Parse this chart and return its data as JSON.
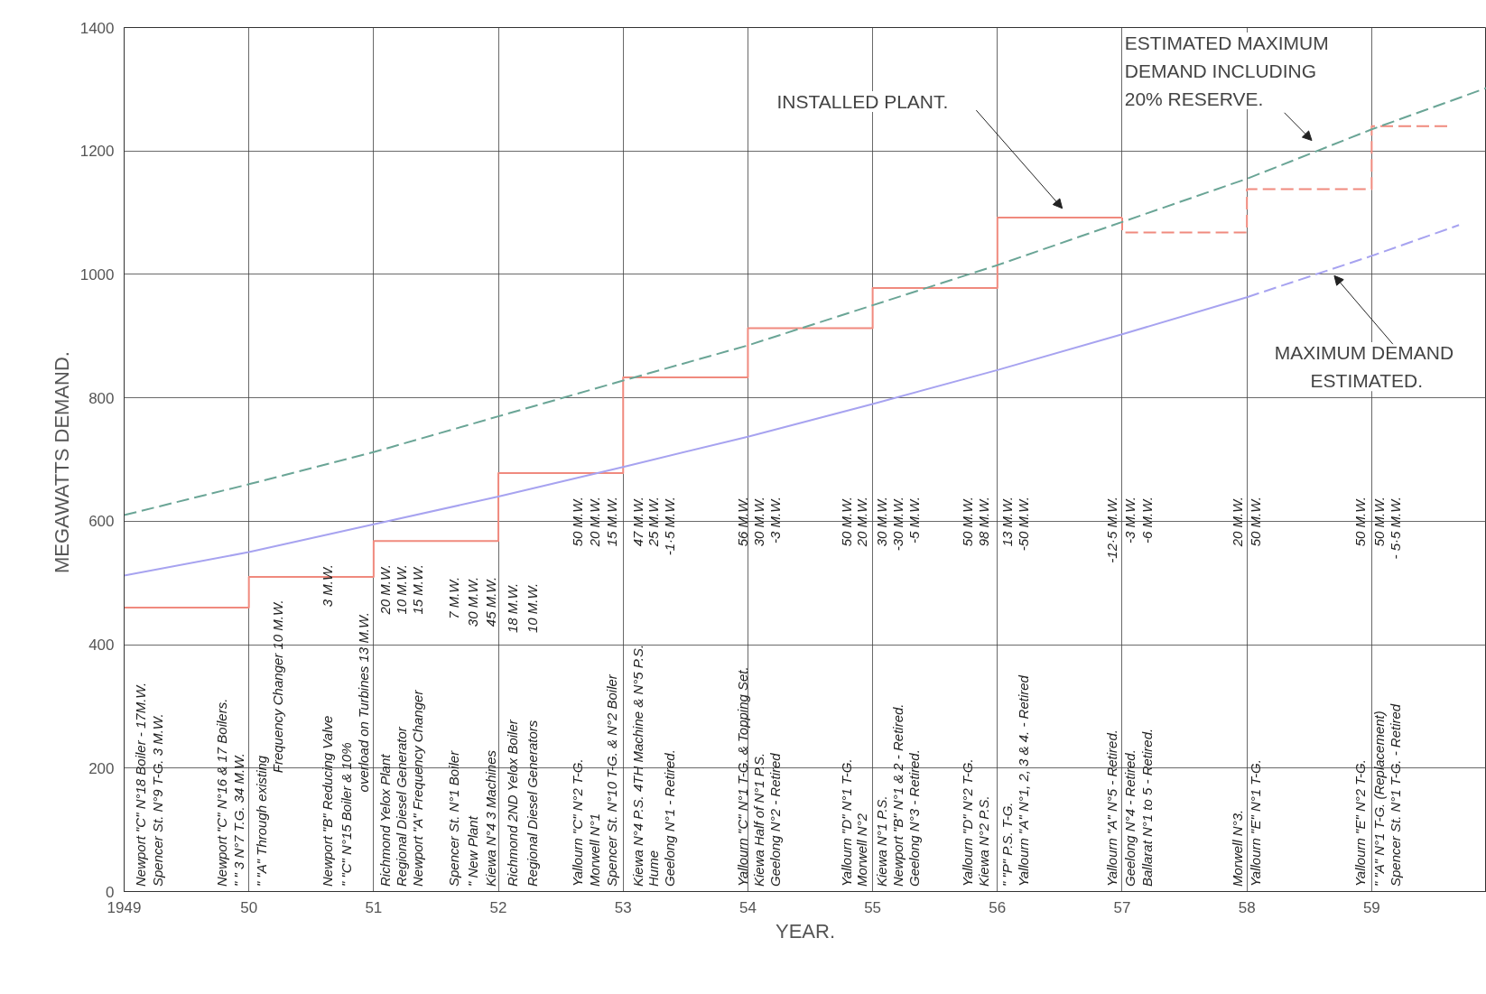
{
  "chart_data": {
    "type": "line",
    "xlabel": "YEAR.",
    "ylabel": "MEGAWATTS  DEMAND.",
    "xlim": [
      1949,
      1959.92
    ],
    "ylim": [
      0,
      1400
    ],
    "xticks": [
      1949,
      {
        "value": 1950,
        "label": "50"
      },
      {
        "value": 1951,
        "label": "51"
      },
      {
        "value": 1952,
        "label": "52"
      },
      {
        "value": 1953,
        "label": "53"
      },
      {
        "value": 1954,
        "label": "54"
      },
      {
        "value": 1955,
        "label": "55"
      },
      {
        "value": 1956,
        "label": "56"
      },
      {
        "value": 1957,
        "label": "57"
      },
      {
        "value": 1958,
        "label": "58"
      },
      {
        "value": 1959,
        "label": "59"
      }
    ],
    "yticks": [
      0,
      200,
      400,
      600,
      800,
      1000,
      1200,
      1400
    ],
    "grid": true,
    "series": [
      {
        "type": "step",
        "color": "#f08a7e",
        "line_style": "solid",
        "x": [
          1949,
          1950,
          1951,
          1952,
          1953,
          1954,
          1955,
          1956,
          1957
        ],
        "values": [
          460,
          510,
          568,
          678,
          833,
          913,
          978,
          1092,
          1092
        ]
      },
      {
        "type": "step",
        "color": "#f08a7e",
        "line_style": "dashed",
        "x": [
          1957,
          1957,
          1958,
          1959,
          1959.62
        ],
        "values": [
          1092,
          1068,
          1138,
          1240,
          1240
        ]
      },
      {
        "color": "#6aa596",
        "line_style": "dashed",
        "x": [
          1949,
          1950,
          1951,
          1952,
          1953,
          1954,
          1955,
          1956,
          1957,
          1958,
          1959,
          1959.92
        ],
        "values": [
          610,
          660,
          712,
          770,
          828,
          885,
          950,
          1015,
          1085,
          1155,
          1235,
          1302
        ]
      },
      {
        "color": "#a7a3f0",
        "line_style": "solid",
        "x": [
          1949,
          1950,
          1951,
          1952,
          1953,
          1954,
          1955,
          1956,
          1957,
          1958
        ],
        "values": [
          512,
          550,
          595,
          640,
          688,
          737,
          790,
          845,
          903,
          963
        ]
      },
      {
        "color": "#a7a3f0",
        "line_style": "dashed",
        "x": [
          1958,
          1959,
          1959.7
        ],
        "values": [
          963,
          1030,
          1080
        ]
      }
    ],
    "annotations": [
      "INSTALLED  PLANT.",
      "ESTIMATED  MAXIMUM\nDEMAND  INCLUDING\n20%  RESERVE.",
      "MAXIMUM  DEMAND\nESTIMATED.",
      "Newport \"C\" N°18 Boiler - 17M.W.",
      "Spencer St. N°9 T-G.  3 M.W.",
      "Newport \"C\" N°16 & 17 Boilers.",
      "\"    \"  3 N°7 T.G. 34 M.W.",
      "\"  \"A\" Through existing",
      "Frequency Changer 10 M.W.",
      "Newport \"B\" Reducing Valve",
      "3 M.W.",
      "\"  \"C\" N°15 Boiler & 10%",
      "overload on Turbines 13 M.W.",
      "Richmond Yelox Plant",
      "20 M.W.",
      "Regional Diesel Generator",
      "10 M.W.",
      "Newport \"A\" Frequency Changer",
      "15 M.W.",
      "Spencer St. N°1 Boiler",
      "7 M.W.",
      "\"      New Plant",
      "30 M.W.",
      "Kiewa N°4  3 Machines",
      "45 M.W.",
      "Richmond 2ND Yelox Boiler",
      "18 M.W.",
      "Regional Diesel Generators",
      "10 M.W.",
      "Yallourn \"C\" N°2 T-G.",
      "50 M.W.",
      "Morwell N°1",
      "20 M.W.",
      "Spencer St. N°10 T-G. & N°2 Boiler",
      "15 M.W.",
      "Kiewa N°4 P.S. 4TH Machine & N°5 P.S.",
      "47 M.W.",
      "Hume",
      "25 M.W.",
      "Geelong N°1 - Retired.",
      "-1·5 M.W.",
      "Yallourn \"C\" N°1 T-G. & Topping Set.",
      "56 M.W.",
      "Kiewa Half of N°1 P.S.",
      "30 M.W.",
      "Geelong N°2 - Retired",
      "-3 M.W.",
      "Yallourn \"D\" N°1 T-G.",
      "50 M.W.",
      "Morwell N°2",
      "20 M.W.",
      "Kiewa N°1 P.S.",
      "30 M.W.",
      "Newport \"B\" N°1 & 2 - Retired.",
      "-30 M.W.",
      "Geelong N°3 - Retired.",
      "-5 M.W.",
      "Yallourn \"D\" N°2 T-G.",
      "50 M.W.",
      "Kiewa N°2 P.S.",
      "98 M.W.",
      "\"   \"P\" P.S.   T-G.",
      "13 M.W.",
      "Yallourn \"A\" N°1, 2, 3 & 4. - Retired",
      "-50 M.W.",
      "Yallourn \"A\" N°5 - Retired.",
      "-12·5 M.W.",
      "Geelong N°4 - Retired.",
      "-3 M.W.",
      "Ballarat N°1 to 5 - Retired.",
      "-6 M.W.",
      "Morwell N°3.",
      "20 M.W.",
      "Yallourn \"E\" N°1 T-G.",
      "50 M.W.",
      "Yallourn \"E\" N°2 T-G.",
      "50 M.W.",
      "\"  \"A\" N°1 T-G. (Replacement)",
      "50 M.W.",
      "Spencer St. N°1 T-G. - Retired",
      "- 5·5 M.W."
    ]
  }
}
